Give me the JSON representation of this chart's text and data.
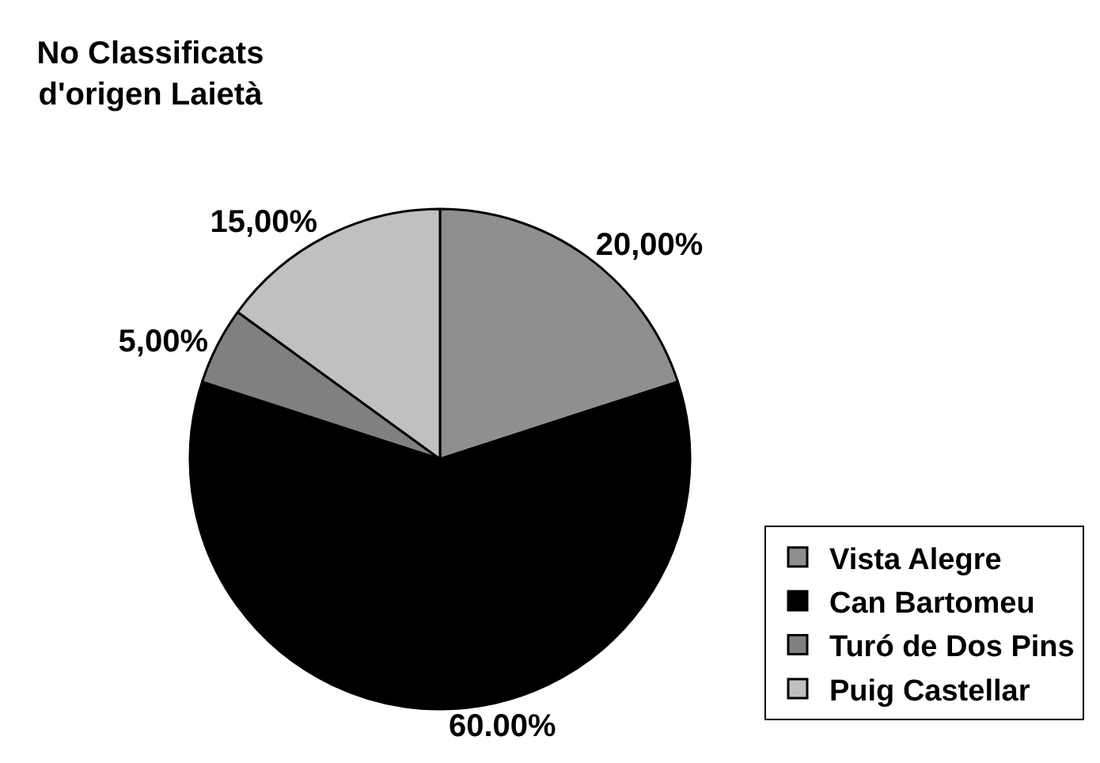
{
  "chart_data": {
    "type": "pie",
    "title": "No Classificats\nd'origen Laietà",
    "categories": [
      "Vista Alegre",
      "Can Bartomeu",
      "Turó de Dos Pins",
      "Puig Castellar"
    ],
    "values": [
      20,
      60,
      5,
      15
    ],
    "colors": [
      "#8f8f8f",
      "#000000",
      "#808080",
      "#c0c0c0"
    ],
    "value_labels": [
      "20,00%",
      "60.00%",
      "5,00%",
      "15,00%"
    ],
    "legend": "bottom right"
  }
}
